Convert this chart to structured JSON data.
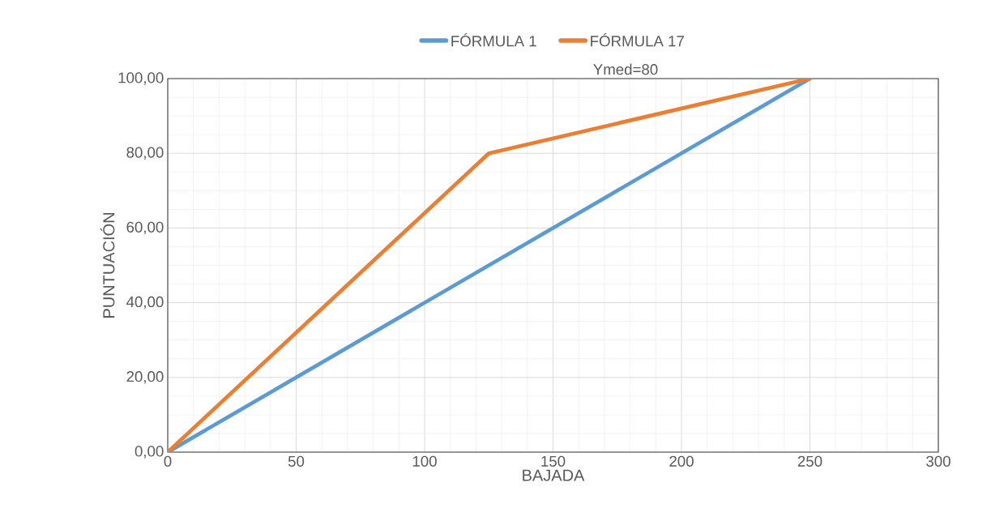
{
  "chart_data": {
    "type": "line",
    "xlabel": "BAJADA",
    "ylabel": "PUNTUACIÓN",
    "annotations": [
      "Ymed=80"
    ],
    "series": [
      {
        "name": "FÓRMULA 1",
        "color": "#5b9bd5",
        "x": [
          0,
          125,
          250
        ],
        "values": [
          0,
          50,
          100
        ]
      },
      {
        "name": "FÓRMULA 17",
        "color": "#ed7d31",
        "x": [
          0,
          125,
          250
        ],
        "values": [
          0,
          80,
          100
        ]
      }
    ],
    "xlim": [
      0,
      300
    ],
    "ylim": [
      0,
      100
    ],
    "xticks": [
      0,
      50,
      100,
      150,
      200,
      250,
      300
    ],
    "yticks": [
      {
        "value": 0,
        "label": "0,00"
      },
      {
        "value": 20,
        "label": "20,00"
      },
      {
        "value": 40,
        "label": "40,00"
      },
      {
        "value": 60,
        "label": "60,00"
      },
      {
        "value": 80,
        "label": "80,00"
      },
      {
        "value": 100,
        "label": "100,00"
      }
    ],
    "grid": true,
    "legend": "top",
    "line_style": "solid"
  }
}
